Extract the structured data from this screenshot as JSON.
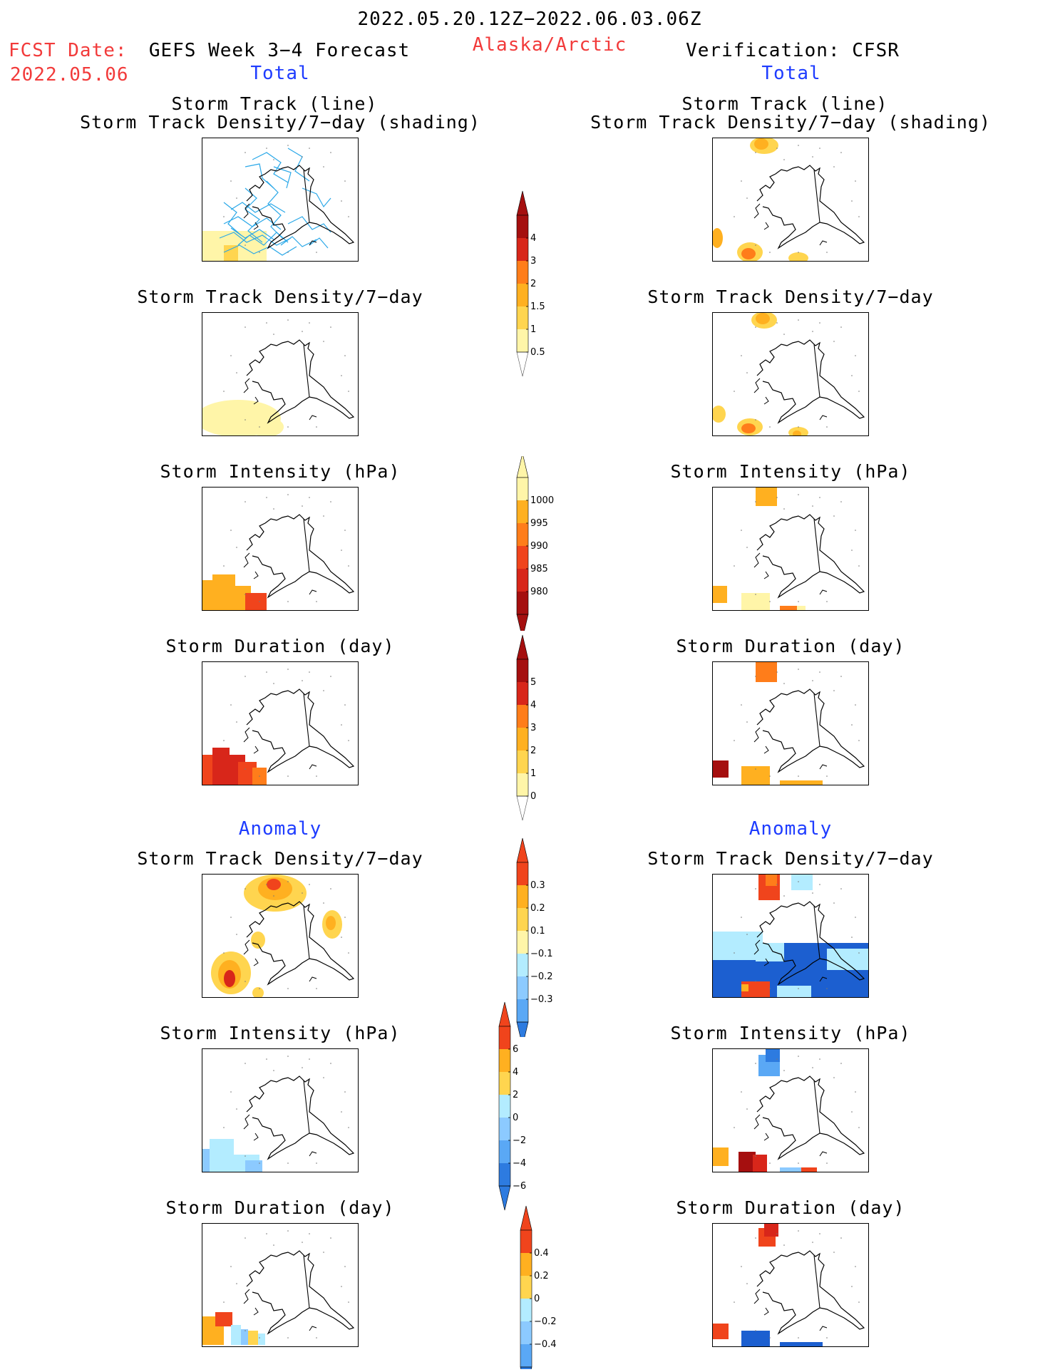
{
  "header": {
    "period": "2022.05.20.12Z−2022.06.03.06Z",
    "fcst_label": "FCST Date:",
    "fcst_date": "2022.05.06",
    "forecast_title": "GEFS Week 3−4 Forecast",
    "region": "Alaska/Arctic",
    "verification": "Verification: CFSR"
  },
  "sections": {
    "total_left": "Total",
    "total_right": "Total",
    "anomaly_left": "Anomaly",
    "anomaly_right": "Anomaly"
  },
  "panels": {
    "track_line": "Storm Track (line)",
    "track_shading": "Storm Track Density/7−day (shading)",
    "density": "Storm Track Density/7−day",
    "intensity": "Storm Intensity (hPa)",
    "duration": "Storm Duration (day)"
  },
  "colorbars": {
    "density_total": [
      "4",
      "3",
      "2",
      "1.5",
      "1",
      "0.5"
    ],
    "intensity_total": [
      "1000",
      "995",
      "990",
      "985",
      "980"
    ],
    "duration_total": [
      "5",
      "4",
      "3",
      "2",
      "1",
      "0"
    ],
    "density_anom": [
      "0.3",
      "0.2",
      "0.1",
      "−0.1",
      "−0.2",
      "−0.3"
    ],
    "intensity_anom": [
      "6",
      "4",
      "2",
      "0",
      "−2",
      "−4",
      "−6"
    ],
    "duration_anom": [
      "0.4",
      "0.2",
      "0",
      "−0.2",
      "−0.4"
    ]
  },
  "colors": {
    "pale_yellow": "#fff5a8",
    "yellow": "#ffd54f",
    "orange_light": "#ffb020",
    "orange": "#ff7d1a",
    "red_orange": "#f0441c",
    "red": "#d8261a",
    "dark_red": "#a50f0f",
    "light_blue": "#b3ecff",
    "blue_light": "#8ccaff",
    "blue_mid": "#5aa8f5",
    "blue": "#2d7be0",
    "dark_blue": "#1c5fd0",
    "track_line": "#2aa8e8",
    "title_red": "#f23a3a",
    "title_blue": "#1e3cff"
  }
}
